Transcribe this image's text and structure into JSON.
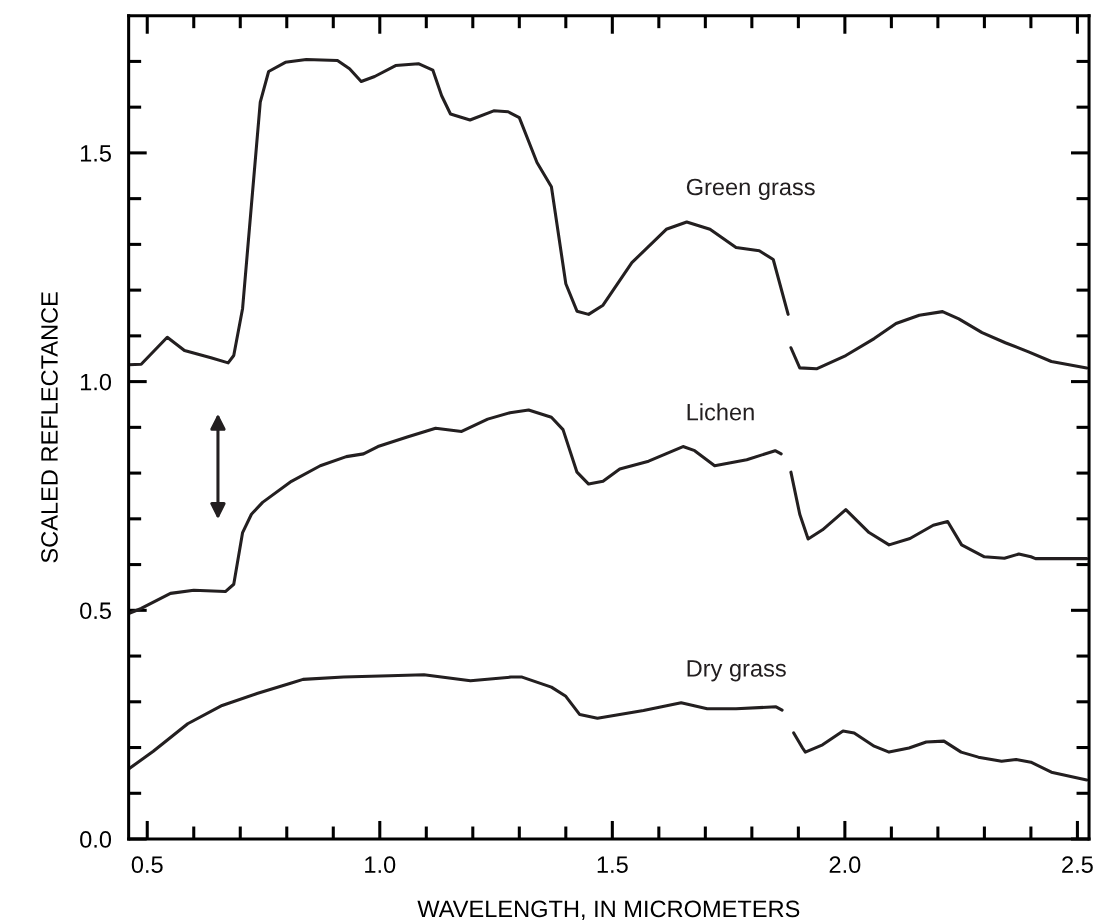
{
  "chart_data": {
    "type": "line",
    "xlabel": "WAVELENGTH, IN MICROMETERS",
    "ylabel": "SCALED REFLECTANCE",
    "xlim": [
      0.46,
      2.525
    ],
    "ylim": [
      0,
      1.8
    ],
    "xticks": [
      {
        "value": 0.5,
        "label": "0.5"
      },
      {
        "value": 0.6,
        "label": null
      },
      {
        "value": 0.7,
        "label": null
      },
      {
        "value": 0.8,
        "label": null
      },
      {
        "value": 0.9,
        "label": null
      },
      {
        "value": 1.0,
        "label": "1.0"
      },
      {
        "value": 1.1,
        "label": null
      },
      {
        "value": 1.2,
        "label": null
      },
      {
        "value": 1.3,
        "label": null
      },
      {
        "value": 1.4,
        "label": null
      },
      {
        "value": 1.5,
        "label": "1.5"
      },
      {
        "value": 1.6,
        "label": null
      },
      {
        "value": 1.7,
        "label": null
      },
      {
        "value": 1.8,
        "label": null
      },
      {
        "value": 1.9,
        "label": null
      },
      {
        "value": 2.0,
        "label": "2.0"
      },
      {
        "value": 2.1,
        "label": null
      },
      {
        "value": 2.2,
        "label": null
      },
      {
        "value": 2.3,
        "label": null
      },
      {
        "value": 2.4,
        "label": null
      },
      {
        "value": 2.5,
        "label": "2.5"
      }
    ],
    "yticks": [
      {
        "value": 0.0,
        "label": "0.0"
      },
      {
        "value": 0.1,
        "label": null
      },
      {
        "value": 0.2,
        "label": null
      },
      {
        "value": 0.3,
        "label": null
      },
      {
        "value": 0.4,
        "label": null
      },
      {
        "value": 0.5,
        "label": "0.5"
      },
      {
        "value": 0.6,
        "label": null
      },
      {
        "value": 0.7,
        "label": null
      },
      {
        "value": 0.8,
        "label": null
      },
      {
        "value": 0.9,
        "label": null
      },
      {
        "value": 1.0,
        "label": "1.0"
      },
      {
        "value": 1.1,
        "label": null
      },
      {
        "value": 1.2,
        "label": null
      },
      {
        "value": 1.3,
        "label": null
      },
      {
        "value": 1.4,
        "label": null
      },
      {
        "value": 1.5,
        "label": "1.5"
      },
      {
        "value": 1.6,
        "label": null
      },
      {
        "value": 1.7,
        "label": null
      }
    ],
    "grid": false,
    "legend": false,
    "marker": "none",
    "line_style": "solid",
    "series": [
      {
        "name": "Green grass",
        "color": "#231f20",
        "x": [
          0.46,
          0.487,
          0.543,
          0.58,
          0.637,
          0.674,
          0.686,
          0.705,
          0.724,
          0.743,
          0.761,
          0.797,
          0.842,
          0.909,
          0.935,
          0.96,
          0.989,
          1.034,
          1.083,
          1.114,
          1.133,
          1.152,
          1.194,
          1.245,
          1.276,
          1.3,
          1.338,
          1.369,
          1.4,
          1.424,
          1.449,
          1.48,
          1.542,
          1.616,
          1.66,
          1.71,
          1.766,
          1.816,
          1.846,
          1.878,
          1.881,
          1.884,
          1.903,
          1.939,
          2.002,
          2.063,
          2.11,
          2.16,
          2.21,
          2.245,
          2.295,
          2.345,
          2.395,
          2.444,
          2.52
        ],
        "values": [
          1.037,
          1.038,
          1.097,
          1.068,
          1.052,
          1.041,
          1.057,
          1.16,
          1.386,
          1.611,
          1.678,
          1.698,
          1.704,
          1.702,
          1.684,
          1.656,
          1.667,
          1.691,
          1.695,
          1.681,
          1.625,
          1.585,
          1.572,
          1.592,
          1.59,
          1.577,
          1.479,
          1.426,
          1.214,
          1.154,
          1.147,
          1.167,
          1.26,
          1.333,
          1.349,
          1.333,
          1.293,
          1.286,
          1.267,
          1.147,
          null,
          1.074,
          1.03,
          1.028,
          1.057,
          1.094,
          1.127,
          1.145,
          1.153,
          1.137,
          1.107,
          1.085,
          1.065,
          1.044,
          1.03
        ]
      },
      {
        "name": "Lichen",
        "color": "#231f20",
        "x": [
          0.46,
          0.487,
          0.55,
          0.6,
          0.668,
          0.686,
          0.705,
          0.724,
          0.748,
          0.81,
          0.872,
          0.928,
          0.965,
          0.996,
          1.059,
          1.12,
          1.176,
          1.232,
          1.28,
          1.32,
          1.369,
          1.394,
          1.424,
          1.449,
          1.48,
          1.516,
          1.578,
          1.652,
          1.677,
          1.72,
          1.789,
          1.85,
          1.863,
          1.873,
          1.884,
          1.903,
          1.921,
          1.952,
          2.002,
          2.052,
          2.095,
          2.14,
          2.19,
          2.221,
          2.251,
          2.3,
          2.343,
          2.374,
          2.4,
          2.41,
          2.52
        ],
        "values": [
          0.493,
          0.504,
          0.537,
          0.544,
          0.541,
          0.557,
          0.67,
          0.71,
          0.736,
          0.782,
          0.816,
          0.836,
          0.842,
          0.858,
          0.879,
          0.898,
          0.891,
          0.918,
          0.932,
          0.938,
          0.922,
          0.895,
          0.802,
          0.776,
          0.782,
          0.809,
          0.826,
          0.858,
          0.849,
          0.816,
          0.829,
          0.849,
          0.842,
          null,
          0.802,
          0.71,
          0.656,
          0.676,
          0.72,
          0.67,
          0.643,
          0.657,
          0.686,
          0.694,
          0.643,
          0.617,
          0.614,
          0.623,
          0.617,
          0.613,
          0.613
        ]
      },
      {
        "name": "Dry grass",
        "color": "#231f20",
        "x": [
          0.46,
          0.513,
          0.587,
          0.661,
          0.736,
          0.81,
          0.835,
          0.922,
          1.021,
          1.095,
          1.195,
          1.282,
          1.306,
          1.369,
          1.4,
          1.43,
          1.468,
          1.567,
          1.648,
          1.704,
          1.766,
          1.852,
          1.865,
          1.878,
          1.89,
          1.909,
          1.915,
          1.952,
          1.996,
          2.02,
          2.063,
          2.095,
          2.138,
          2.175,
          2.213,
          2.25,
          2.287,
          2.337,
          2.368,
          2.4,
          2.444,
          2.52
        ],
        "values": [
          0.153,
          0.192,
          0.252,
          0.292,
          0.318,
          0.341,
          0.349,
          0.354,
          0.357,
          0.359,
          0.346,
          0.354,
          0.354,
          0.332,
          0.312,
          0.272,
          0.264,
          0.281,
          0.298,
          0.285,
          0.285,
          0.289,
          0.282,
          null,
          0.232,
          0.199,
          0.19,
          0.206,
          0.236,
          0.232,
          0.203,
          0.19,
          0.199,
          0.212,
          0.214,
          0.19,
          0.179,
          0.17,
          0.174,
          0.168,
          0.146,
          0.129
        ]
      }
    ]
  }
}
